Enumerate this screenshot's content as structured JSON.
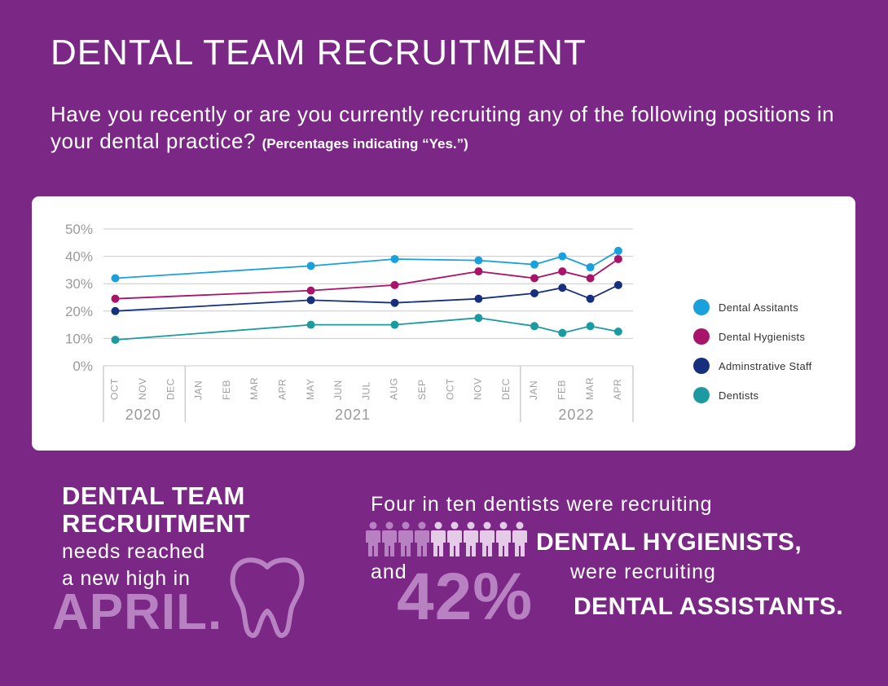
{
  "title": "DENTAL TEAM RECRUITMENT",
  "question": {
    "text": "Have you recently or are you currently recruiting any of the following positions in your dental practice?",
    "note": "(Percentages indicating “Yes.”)"
  },
  "chart_data": {
    "type": "line",
    "title": "",
    "xlabel": "",
    "ylabel": "",
    "ylim": [
      0,
      50
    ],
    "y_ticks": [
      "50%",
      "40%",
      "30%",
      "20%",
      "10%",
      "0%"
    ],
    "y_tick_values": [
      50,
      40,
      30,
      20,
      10,
      0
    ],
    "months": [
      "OCT",
      "NOV",
      "DEC",
      "JAN",
      "FEB",
      "MAR",
      "APR",
      "MAY",
      "JUN",
      "JUL",
      "AUG",
      "SEP",
      "OCT",
      "NOV",
      "DEC",
      "JAN",
      "FEB",
      "MAR",
      "APR"
    ],
    "years": [
      {
        "label": "2020",
        "start": 0,
        "end": 2
      },
      {
        "label": "2021",
        "start": 3,
        "end": 14
      },
      {
        "label": "2022",
        "start": 15,
        "end": 18
      }
    ],
    "grid": true,
    "legend_position": "right",
    "series": [
      {
        "name": "Dental Assitants",
        "color": "#1aa0dc",
        "points": [
          [
            0,
            32
          ],
          [
            7,
            36.5
          ],
          [
            10,
            39
          ],
          [
            13,
            38.5
          ],
          [
            15,
            37
          ],
          [
            16,
            40
          ],
          [
            17,
            36
          ],
          [
            18,
            42
          ]
        ]
      },
      {
        "name": "Dental Hygienists",
        "color": "#a8146a",
        "points": [
          [
            0,
            24.5
          ],
          [
            7,
            27.5
          ],
          [
            10,
            29.5
          ],
          [
            13,
            34.5
          ],
          [
            15,
            32
          ],
          [
            16,
            34.5
          ],
          [
            17,
            32
          ],
          [
            18,
            39
          ]
        ]
      },
      {
        "name": "Adminstrative Staff",
        "color": "#17307d",
        "points": [
          [
            0,
            20
          ],
          [
            7,
            24
          ],
          [
            10,
            23
          ],
          [
            13,
            24.5
          ],
          [
            15,
            26.5
          ],
          [
            16,
            28.5
          ],
          [
            17,
            24.5
          ],
          [
            18,
            29.5
          ]
        ]
      },
      {
        "name": "Dentists",
        "color": "#1b9ba0",
        "points": [
          [
            0,
            9.5
          ],
          [
            7,
            15
          ],
          [
            10,
            15
          ],
          [
            13,
            17.5
          ],
          [
            15,
            14.5
          ],
          [
            16,
            12
          ],
          [
            17,
            14.5
          ],
          [
            18,
            12.5
          ]
        ]
      }
    ]
  },
  "left": {
    "heading_line1": "DENTAL TEAM",
    "heading_line2": "RECRUITMENT",
    "sub_line1": "needs reached",
    "sub_line2": "a new high in",
    "big": "APRIL."
  },
  "right": {
    "line1": "Four in ten dentists were recruiting",
    "hygienists": "DENTAL HYGIENISTS,",
    "and": "and",
    "percent": "42%",
    "were": "were recruiting",
    "assistants": "DENTAL ASSISTANTS.",
    "people_highlighted": 4,
    "people_total": 10
  },
  "colors": {
    "background": "#7a2785",
    "accent_light": "#b882c2",
    "people_light": "#e4cce8"
  }
}
